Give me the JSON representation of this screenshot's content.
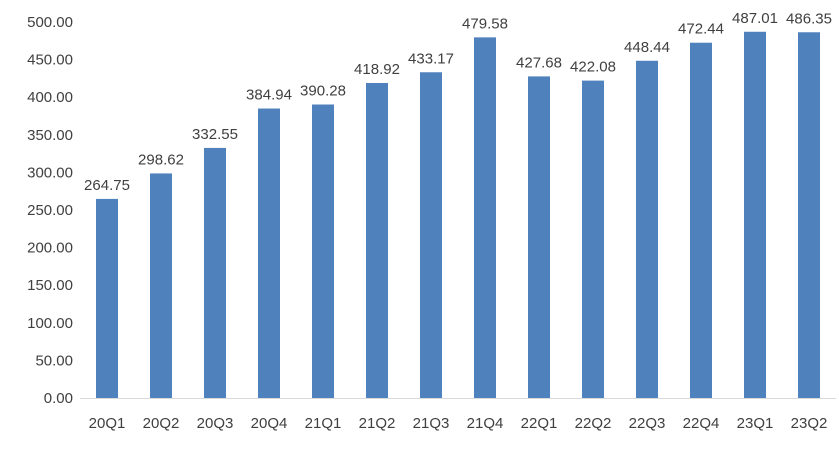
{
  "chart_data": {
    "type": "bar",
    "categories": [
      "20Q1",
      "20Q2",
      "20Q3",
      "20Q4",
      "21Q1",
      "21Q2",
      "21Q3",
      "21Q4",
      "22Q1",
      "22Q2",
      "22Q3",
      "22Q4",
      "23Q1",
      "23Q2"
    ],
    "values": [
      264.75,
      298.62,
      332.55,
      384.94,
      390.28,
      418.92,
      433.17,
      479.58,
      427.68,
      422.08,
      448.44,
      472.44,
      487.01,
      486.35
    ],
    "value_labels": [
      "264.75",
      "298.62",
      "332.55",
      "384.94",
      "390.28",
      "418.92",
      "433.17",
      "479.58",
      "427.68",
      "422.08",
      "448.44",
      "472.44",
      "487.01",
      "486.35"
    ],
    "y_ticks": [
      0,
      50,
      100,
      150,
      200,
      250,
      300,
      350,
      400,
      450,
      500
    ],
    "y_tick_labels": [
      "0.00",
      "50.00",
      "100.00",
      "150.00",
      "200.00",
      "250.00",
      "300.00",
      "350.00",
      "400.00",
      "450.00",
      "500.00"
    ],
    "ylim": [
      0,
      500
    ],
    "grid": false,
    "legend": "none",
    "colors": {
      "bar": "#4f81bd",
      "text": "#404040",
      "axis": "#d9d9d9"
    }
  }
}
